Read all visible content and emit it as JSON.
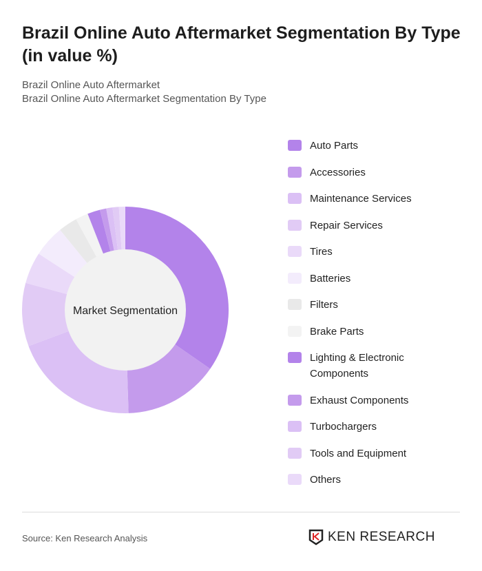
{
  "title": "Brazil Online Auto Aftermarket Segmentation By Type (in value %)",
  "subtitle1": "Brazil Online Auto Aftermarket",
  "subtitle2": "Brazil Online Auto Aftermarket Segmentation By Type",
  "source": "Source: Ken Research Analysis",
  "logo_text": "KEN RESEARCH",
  "chart_data": {
    "type": "pie",
    "donut": true,
    "center_label": "Market Segmentation",
    "legend_position": "right",
    "categories": [
      "Auto Parts",
      "Accessories",
      "Maintenance Services",
      "Repair Services",
      "Tires",
      "Batteries",
      "Filters",
      "Brake Parts",
      "Lighting & Electronic Components",
      "Exhaust Components",
      "Turbochargers",
      "Tools and Equipment",
      "Others"
    ],
    "values": [
      35,
      15,
      20,
      10,
      5,
      5,
      3,
      2,
      2,
      1,
      1,
      1,
      1
    ],
    "colors": [
      "#b383ea",
      "#c49bec",
      "#dbc0f5",
      "#e1cbf5",
      "#eadaf9",
      "#f3ecfc",
      "#e9e9e9",
      "#f3f3f3",
      "#b383ea",
      "#c49bec",
      "#dbc0f5",
      "#e1cbf5",
      "#eadaf9"
    ]
  }
}
